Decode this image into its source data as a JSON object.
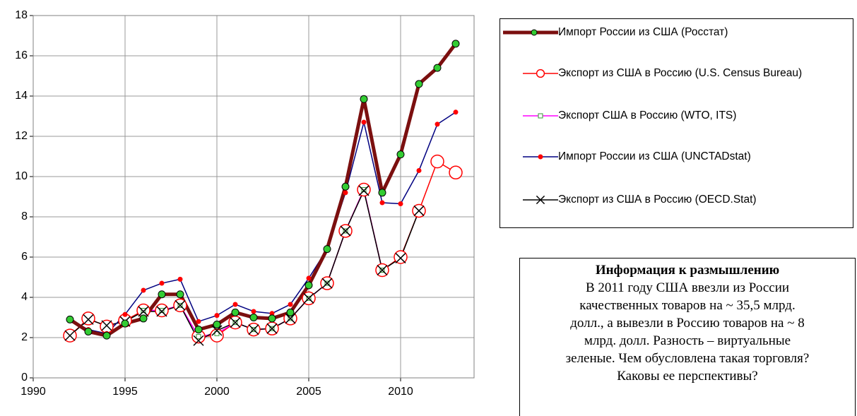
{
  "chart_data": {
    "type": "line",
    "x": [
      1992,
      1993,
      1994,
      1995,
      1996,
      1997,
      1998,
      1999,
      2000,
      2001,
      2002,
      2003,
      2004,
      2005,
      2006,
      2007,
      2008,
      2009,
      2010,
      2011,
      2012,
      2013
    ],
    "series": [
      {
        "name": "Импорт России из США (Росстат)",
        "color": "#7b0f0f",
        "marker": "circle-green",
        "width": 5,
        "values": [
          2.9,
          2.3,
          2.1,
          2.7,
          2.95,
          4.15,
          4.15,
          2.4,
          2.65,
          3.25,
          3.0,
          2.95,
          3.25,
          4.6,
          6.4,
          9.5,
          13.85,
          9.2,
          11.1,
          14.6,
          15.4,
          16.6
        ]
      },
      {
        "name": "Экспорт из США в Россию (U.S. Census Bureau)",
        "color": "#ff0000",
        "marker": "circle-open",
        "width": 1.5,
        "values": [
          2.1,
          2.95,
          2.55,
          2.85,
          3.35,
          3.35,
          3.6,
          2.05,
          2.1,
          2.75,
          2.4,
          2.45,
          2.95,
          3.95,
          4.7,
          7.3,
          9.35,
          5.35,
          6.0,
          8.3,
          10.75,
          10.2
        ]
      },
      {
        "name": "Экспорт США в Россию (WTO, ITS)",
        "color": "#ff00ff",
        "marker": "square",
        "width": 1.5,
        "values": [
          null,
          null,
          null,
          null,
          3.35,
          3.35,
          3.6,
          2.05,
          2.2,
          2.75,
          2.4,
          2.45,
          2.95,
          3.95,
          4.7,
          7.3,
          9.35,
          5.35,
          null,
          null,
          null,
          null
        ]
      },
      {
        "name": "Импорт России из США (UNCTADstat)",
        "color": "#000080",
        "marker": "dot",
        "width": 1.5,
        "values": [
          2.9,
          2.4,
          2.2,
          3.15,
          4.35,
          4.7,
          4.9,
          2.8,
          3.1,
          3.65,
          3.3,
          3.2,
          3.65,
          4.95,
          6.4,
          9.2,
          12.7,
          8.7,
          8.65,
          10.3,
          12.6,
          13.2
        ]
      },
      {
        "name": "Экспорт из США в Россию (OECD.Stat)",
        "color": "#000000",
        "marker": "x",
        "width": 1.5,
        "values": [
          2.1,
          2.9,
          2.6,
          2.8,
          3.3,
          3.3,
          3.6,
          1.85,
          2.35,
          2.75,
          2.4,
          2.45,
          2.95,
          3.95,
          4.7,
          7.3,
          9.3,
          5.35,
          5.95,
          8.3,
          null,
          null
        ]
      }
    ],
    "xlim": [
      1990,
      2014
    ],
    "xticks": [
      1990,
      1995,
      2000,
      2005,
      2010
    ],
    "ylim": [
      0,
      18
    ],
    "yticks": [
      0,
      2,
      4,
      6,
      8,
      10,
      12,
      14,
      16,
      18
    ],
    "grid": true,
    "note": {
      "title": "Информация к размышлению",
      "lines": [
        "В 2011 году США ввезли из России",
        "качественных товаров на ~ 35,5 млрд.",
        "долл., а вывезли в Россию товаров на ~ 8",
        "млрд. долл. Разность – виртуальные",
        "зеленые. Чем обусловлена такая торговля?",
        "Каковы ее перспективы?"
      ]
    }
  }
}
